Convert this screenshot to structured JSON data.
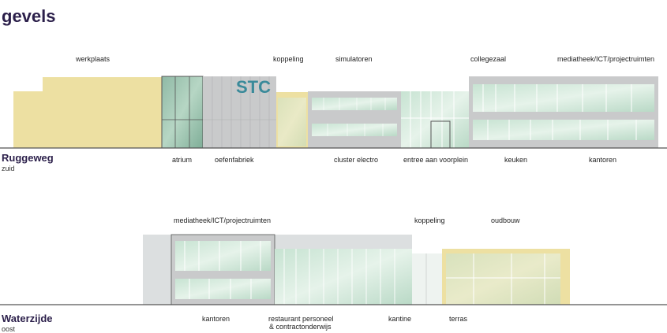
{
  "title": "gevels",
  "stc_label": "STC",
  "elevations": [
    {
      "street": "Ruggeweg",
      "direction": "zuid",
      "labels_top": [
        "werkplaats",
        "koppeling",
        "simulatoren",
        "collegezaal",
        "mediatheek/ICT/projectruimten"
      ],
      "labels_bottom": [
        "atrium",
        "oefenfabriek",
        "cluster electro",
        "entree aan voorplein",
        "keuken",
        "kantoren"
      ]
    },
    {
      "street": "Waterzijde",
      "direction": "oost",
      "labels_top": [
        "mediatheek/ICT/projectruimten",
        "koppeling",
        "oudbouw"
      ],
      "labels_bottom": [
        "kantoren",
        "restaurant personeel",
        "& contractonderwijs",
        "kantine",
        "terras"
      ]
    }
  ],
  "colors": {
    "title": "#2b1f4a",
    "yellow": "#ede0a2",
    "grey": "#c9cacb",
    "glass": "#cfe6d8",
    "teal": "#3a8a9a",
    "light_grey": "#dcdfe0"
  }
}
